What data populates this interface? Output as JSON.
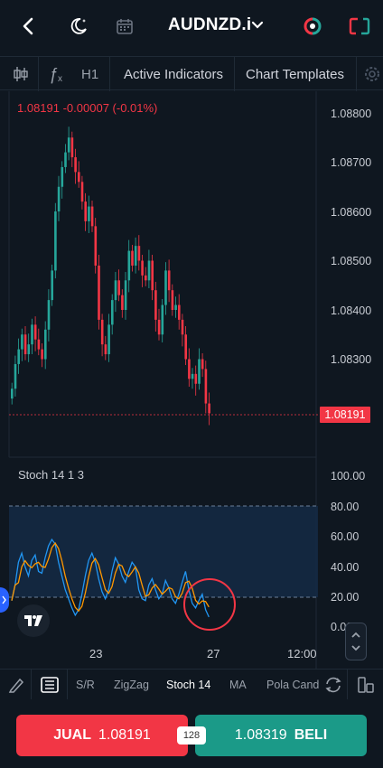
{
  "header": {
    "symbol": "AUDNZD.i",
    "icons": [
      "back-icon",
      "moon-icon",
      "calendar-icon",
      "flip-icon",
      "broken-square-icon"
    ]
  },
  "toolbar": {
    "timeframe": "H1",
    "active_indicators": "Active Indicators",
    "chart_templates": "Chart Templates",
    "icons": [
      "candle-type-icon",
      "fx-icon",
      "settings-icon"
    ]
  },
  "chart": {
    "ohlc_text": "1.08191  -0.00007 (-0.01%)",
    "price_axis": [
      "1.08800",
      "1.08700",
      "1.08600",
      "1.08500",
      "1.08400",
      "1.08300"
    ],
    "last_price": "1.08191",
    "colors": {
      "up": "#26a69a",
      "down": "#f23645",
      "stoch_k": "#2196f3",
      "stoch_d": "#ff9800"
    }
  },
  "stoch": {
    "label": "Stoch  14  1  3",
    "axis": [
      "100.00",
      "80.00",
      "60.00",
      "40.00",
      "20.00",
      "0.00"
    ]
  },
  "time_axis": [
    "23",
    "27",
    "12:00"
  ],
  "indicator_bar": {
    "items": [
      "S/R",
      "ZigZag",
      "Stoch 14",
      "MA",
      "Pola Cand"
    ],
    "active": "Stoch 14"
  },
  "order": {
    "sell_label": "JUAL",
    "sell_price": "1.08191",
    "buy_price": "1.08319",
    "buy_label": "BELI",
    "spread": "128"
  }
}
